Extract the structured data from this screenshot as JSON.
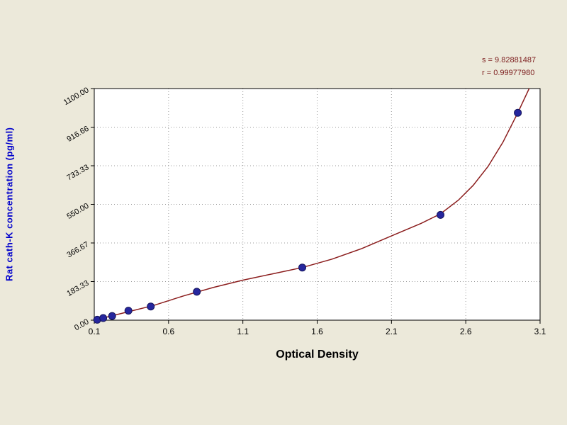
{
  "chart_data": {
    "type": "scatter",
    "title": "",
    "xlabel": "Optical Density",
    "ylabel": "Rat cath-K concentration (pg/ml)",
    "xlim": [
      0.1,
      3.1
    ],
    "ylim": [
      0,
      1100
    ],
    "grid": true,
    "legend_position": "none",
    "x_tick_values": [
      0.1,
      0.6,
      1.1,
      1.6,
      2.1,
      2.6,
      3.1
    ],
    "x_tick_labels": [
      "0.1",
      "0.6",
      "1.1",
      "1.6",
      "2.1",
      "2.6",
      "3.1"
    ],
    "y_tick_values": [
      0,
      183.33,
      366.67,
      550.0,
      733.33,
      916.66,
      1100.0
    ],
    "y_tick_labels": [
      "0.00",
      "183.33",
      "366.67",
      "550.00",
      "733.33",
      "916.66",
      "1100.00"
    ],
    "points": [
      [
        0.12,
        2
      ],
      [
        0.16,
        10
      ],
      [
        0.22,
        20
      ],
      [
        0.33,
        45
      ],
      [
        0.48,
        65
      ],
      [
        0.79,
        135
      ],
      [
        1.5,
        250
      ],
      [
        2.43,
        500
      ],
      [
        2.95,
        985
      ]
    ],
    "curve": [
      [
        0.1,
        0
      ],
      [
        0.3,
        35
      ],
      [
        0.5,
        70
      ],
      [
        0.7,
        115
      ],
      [
        0.9,
        155
      ],
      [
        1.1,
        190
      ],
      [
        1.3,
        220
      ],
      [
        1.5,
        250
      ],
      [
        1.7,
        290
      ],
      [
        1.9,
        340
      ],
      [
        2.1,
        400
      ],
      [
        2.3,
        460
      ],
      [
        2.43,
        505
      ],
      [
        2.55,
        570
      ],
      [
        2.65,
        640
      ],
      [
        2.75,
        730
      ],
      [
        2.85,
        845
      ],
      [
        2.95,
        985
      ],
      [
        3.0,
        1060
      ],
      [
        3.04,
        1120
      ]
    ],
    "stats": {
      "s": "s = 9.82881487",
      "r": "r = 0.99977980"
    },
    "colors": {
      "background": "#ece9da",
      "plot_bg": "#ffffff",
      "grid": "#9a9a9a",
      "frame": "#000000",
      "curve": "#8b1d1d",
      "points": "#26269e",
      "point_edge": "#15155c",
      "tick_text": "#000000",
      "x_title": "#000000",
      "y_title": "#0000cc",
      "stats_text": "#7c1d1d"
    }
  }
}
